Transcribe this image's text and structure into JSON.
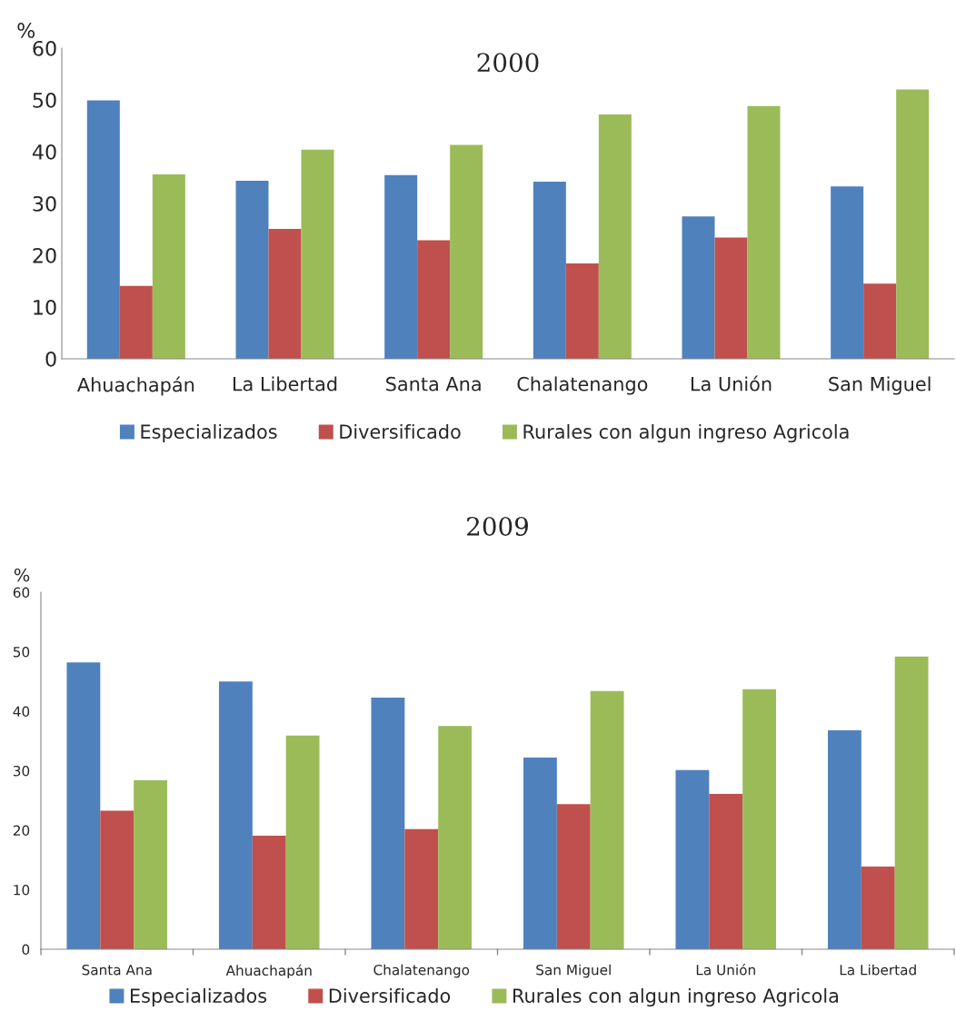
{
  "chart_data": [
    {
      "type": "bar",
      "title": "2000",
      "ylabel": "%",
      "categories": [
        "Ahuachapán",
        "La Libertad",
        "Santa Ana",
        "Chalatenango",
        "La Unión",
        "San Miguel"
      ],
      "series": [
        {
          "name": "Especializados",
          "color": "#4f81bd",
          "values": [
            49.9,
            34.4,
            35.5,
            34.2,
            27.5,
            33.3
          ]
        },
        {
          "name": "Diversificado",
          "color": "#c0504d",
          "values": [
            14.1,
            25.1,
            22.9,
            18.4,
            23.4,
            14.5
          ]
        },
        {
          "name": "Rurales con algun ingreso Agricola",
          "color": "#9bbb59",
          "values": [
            35.6,
            40.4,
            41.3,
            47.2,
            48.8,
            52.0
          ]
        }
      ],
      "ylim": [
        0,
        60
      ],
      "yticks": [
        0,
        10,
        20,
        30,
        40,
        50,
        60
      ],
      "grid": false,
      "legend": "bottom"
    },
    {
      "type": "bar",
      "title": "2009",
      "ylabel": "%",
      "categories": [
        "Santa Ana",
        "Ahuachapán",
        "Chalatenango",
        "San Miguel",
        "La Unión",
        "La Libertad"
      ],
      "series": [
        {
          "name": "Especializados",
          "color": "#4f81bd",
          "values": [
            48.2,
            45.0,
            42.3,
            32.2,
            30.1,
            36.8
          ]
        },
        {
          "name": "Diversificado",
          "color": "#c0504d",
          "values": [
            23.3,
            19.1,
            20.2,
            24.4,
            26.1,
            13.9
          ]
        },
        {
          "name": "Rurales con algun ingreso Agricola",
          "color": "#9bbb59",
          "values": [
            28.4,
            35.9,
            37.5,
            43.4,
            43.7,
            49.2
          ]
        }
      ],
      "ylim": [
        0,
        60
      ],
      "yticks": [
        0,
        10,
        20,
        30,
        40,
        50,
        60
      ],
      "grid": false,
      "legend": "bottom"
    }
  ]
}
